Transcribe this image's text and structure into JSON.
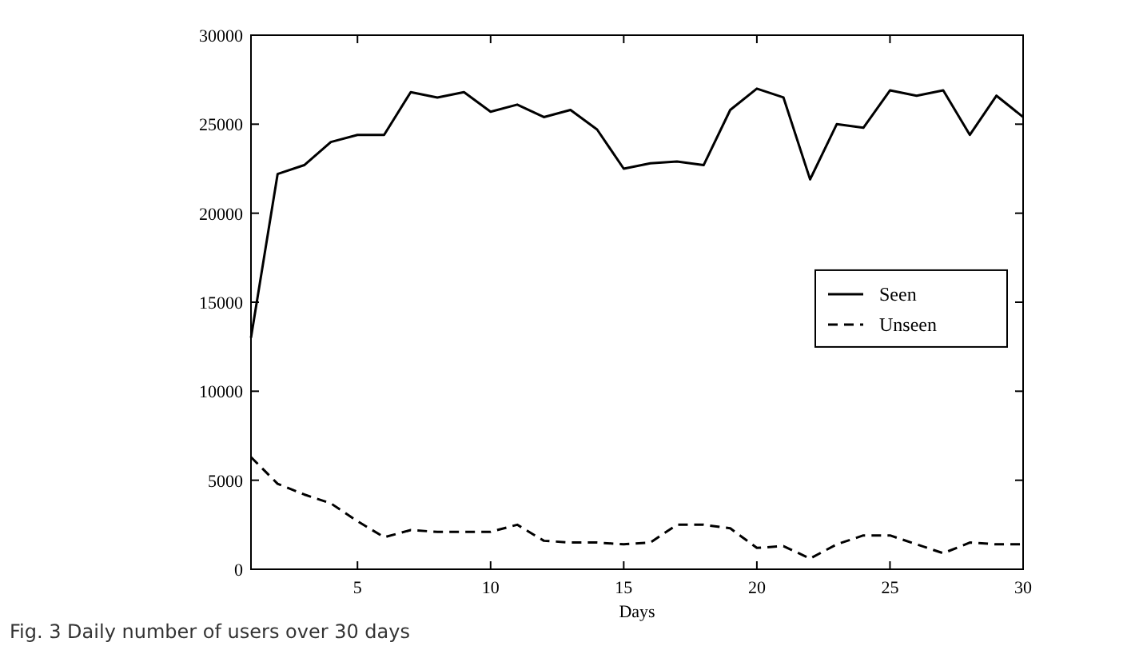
{
  "chart_data": {
    "type": "line",
    "xlabel": "Days",
    "annotations": [
      "Fig. 3  Daily number of users over 30 days"
    ],
    "x": [
      1,
      2,
      3,
      4,
      5,
      6,
      7,
      8,
      9,
      10,
      11,
      12,
      13,
      14,
      15,
      16,
      17,
      18,
      19,
      20,
      21,
      22,
      23,
      24,
      25,
      26,
      27,
      28,
      29,
      30
    ],
    "series": [
      {
        "name": "Seen",
        "color": "#000000",
        "line_style": "solid",
        "values": [
          13000,
          22200,
          22700,
          24000,
          24400,
          24400,
          26800,
          26500,
          26800,
          25700,
          26100,
          25400,
          25800,
          24700,
          22500,
          22800,
          22900,
          22700,
          25800,
          27000,
          26500,
          21900,
          25000,
          24800,
          26900,
          26600,
          26900,
          24400,
          26600,
          25400
        ]
      },
      {
        "name": "Unseen",
        "color": "#000000",
        "line_style": "dashed",
        "values": [
          6300,
          4800,
          4200,
          3700,
          2700,
          1800,
          2200,
          2100,
          2100,
          2100,
          2500,
          1600,
          1500,
          1500,
          1400,
          1500,
          2500,
          2500,
          2300,
          1200,
          1300,
          600,
          1400,
          1900,
          1900,
          1400,
          900,
          1500,
          1400,
          1400
        ]
      }
    ],
    "xlim": [
      1,
      30
    ],
    "xticks": [
      5,
      10,
      15,
      20,
      25,
      30
    ],
    "ylim": [
      0,
      30000
    ],
    "yticks": [
      0,
      5000,
      10000,
      15000,
      20000,
      25000,
      30000
    ],
    "legend": "right",
    "grid": false,
    "marker": "none"
  }
}
